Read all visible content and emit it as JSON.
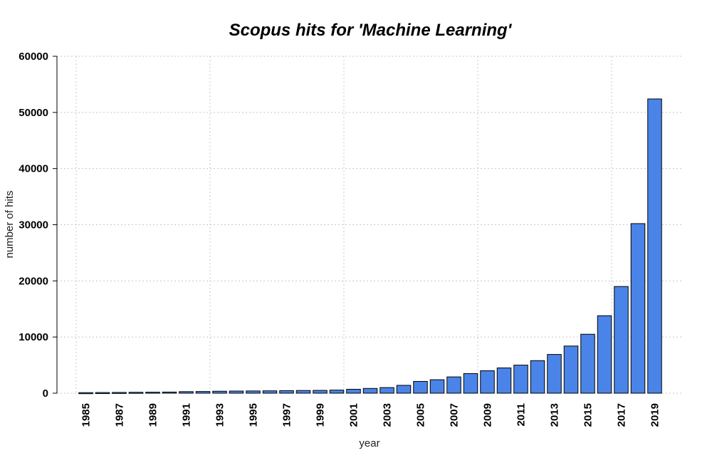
{
  "chart_data": {
    "type": "bar",
    "title": "Scopus hits for 'Machine Learning'",
    "xlabel": "year",
    "ylabel": "number of hits",
    "categories": [
      "1985",
      "1986",
      "1987",
      "1988",
      "1989",
      "1990",
      "1991",
      "1992",
      "1993",
      "1994",
      "1995",
      "1996",
      "1997",
      "1998",
      "1999",
      "2000",
      "2001",
      "2002",
      "2003",
      "2004",
      "2005",
      "2006",
      "2007",
      "2008",
      "2009",
      "2010",
      "2011",
      "2012",
      "2013",
      "2014",
      "2015",
      "2016",
      "2017",
      "2018",
      "2019"
    ],
    "x_tick_labels": [
      "1985",
      "1987",
      "1989",
      "1991",
      "1993",
      "1995",
      "1997",
      "1999",
      "2001",
      "2003",
      "2005",
      "2007",
      "2009",
      "2011",
      "2013",
      "2015",
      "2017",
      "2019"
    ],
    "values": [
      100,
      120,
      140,
      160,
      180,
      200,
      280,
      300,
      350,
      380,
      400,
      420,
      450,
      480,
      500,
      550,
      700,
      850,
      1000,
      1400,
      2100,
      2400,
      2900,
      3500,
      4000,
      4500,
      5000,
      5800,
      6900,
      8400,
      10500,
      13800,
      19000,
      30200,
      52400
    ],
    "ylim": [
      0,
      60000
    ],
    "yticks": [
      0,
      10000,
      20000,
      30000,
      40000,
      50000,
      60000
    ],
    "y_tick_labels": [
      "0",
      "10000",
      "20000",
      "30000",
      "40000",
      "50000",
      "60000"
    ],
    "bar_color": "#4A84E8",
    "grid": true
  }
}
